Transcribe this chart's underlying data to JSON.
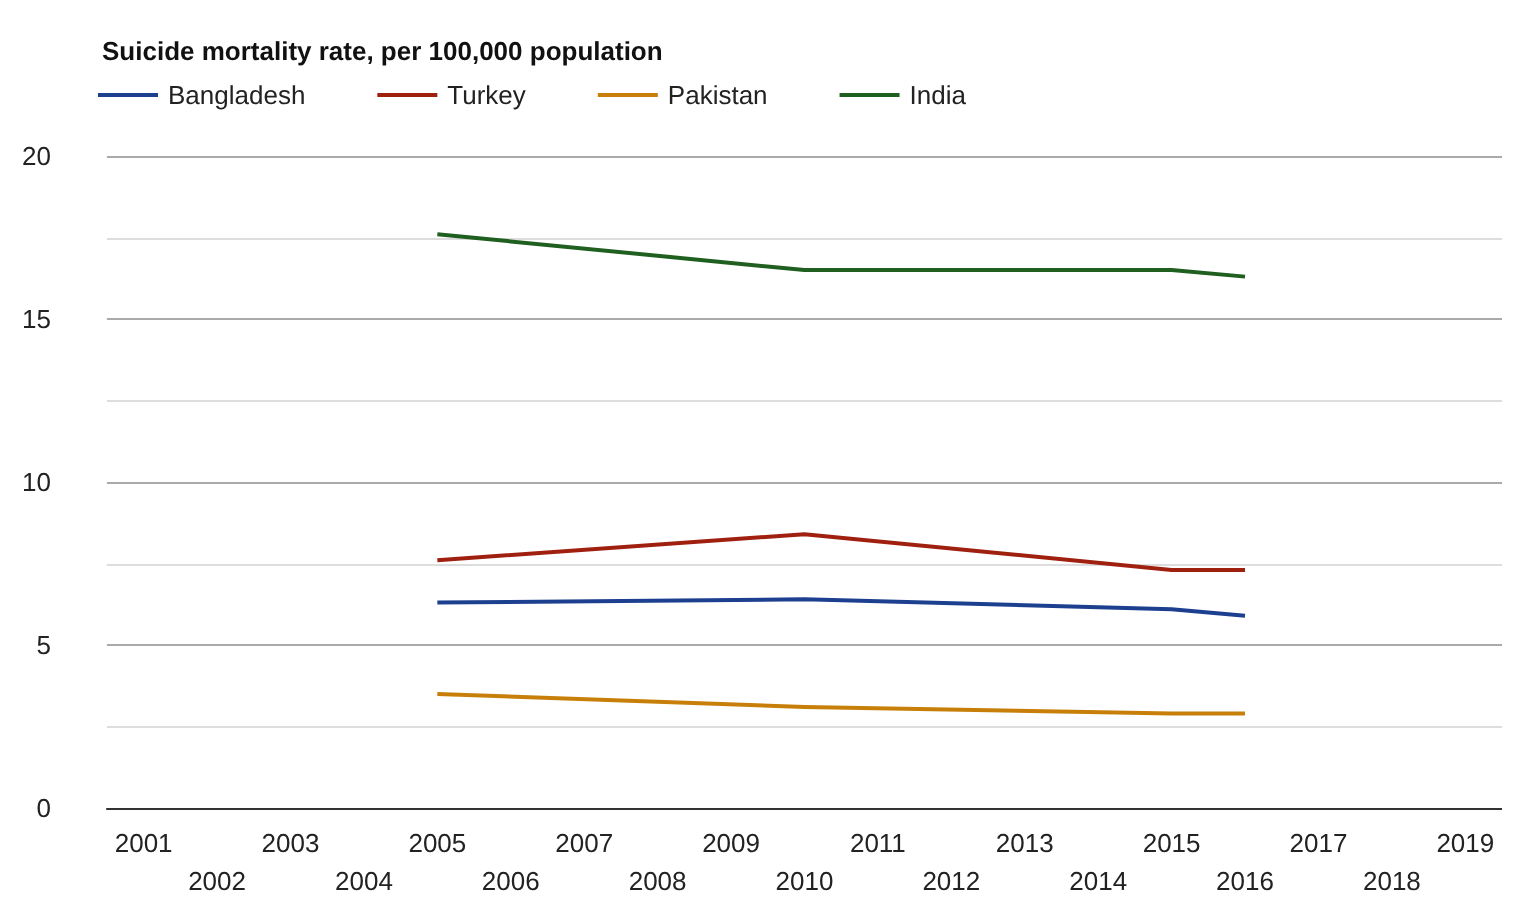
{
  "chart_data": {
    "type": "line",
    "title": "Suicide mortality rate, per 100,000 population",
    "categories": [
      "2001",
      "2002",
      "2003",
      "2004",
      "2005",
      "2006",
      "2007",
      "2008",
      "2009",
      "2010",
      "2011",
      "2012",
      "2013",
      "2014",
      "2015",
      "2016",
      "2017",
      "2018",
      "2019"
    ],
    "series": [
      {
        "name": "Bangladesh",
        "color": "#1c3f8f",
        "values": [
          null,
          null,
          null,
          null,
          6.3,
          null,
          null,
          null,
          null,
          6.4,
          null,
          null,
          null,
          null,
          6.1,
          5.9,
          null,
          null,
          null
        ]
      },
      {
        "name": "Turkey",
        "color": "#a02010",
        "values": [
          null,
          null,
          null,
          null,
          7.6,
          null,
          null,
          null,
          null,
          8.4,
          null,
          null,
          null,
          null,
          7.3,
          7.3,
          null,
          null,
          null
        ]
      },
      {
        "name": "Pakistan",
        "color": "#c87f0a",
        "values": [
          null,
          null,
          null,
          null,
          3.5,
          null,
          null,
          null,
          null,
          3.1,
          null,
          null,
          null,
          null,
          2.9,
          2.9,
          null,
          null,
          null
        ]
      },
      {
        "name": "India",
        "color": "#1f5f1f",
        "values": [
          null,
          null,
          null,
          null,
          17.6,
          null,
          null,
          null,
          null,
          16.5,
          null,
          null,
          null,
          null,
          16.5,
          16.3,
          null,
          null,
          null
        ]
      }
    ],
    "ylim": [
      0,
      20
    ],
    "yticks": [
      0,
      5,
      10,
      15,
      20
    ],
    "grid": "y",
    "legend": "top left",
    "marker": "none",
    "line_style": "solid"
  }
}
